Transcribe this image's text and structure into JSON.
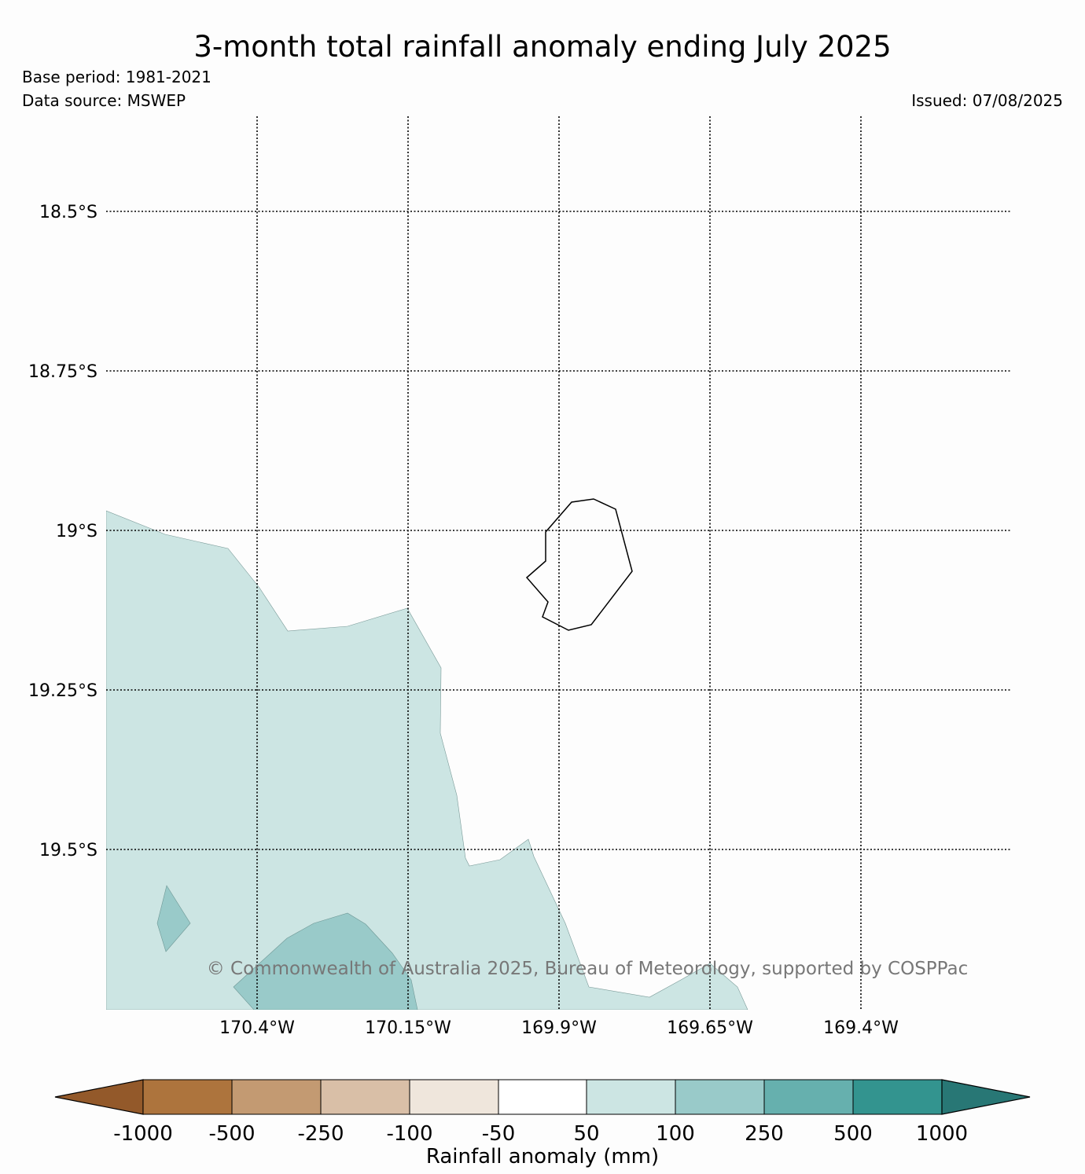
{
  "header": {
    "title": "3-month total rainfall anomaly ending July 2025",
    "base_period": "Base period: 1981-2021",
    "data_source": "Data source: MSWEP",
    "issued": "Issued: 07/08/2025"
  },
  "map": {
    "lat_labels": [
      "18.5°S",
      "18.75°S",
      "19°S",
      "19.25°S",
      "19.5°S"
    ],
    "lon_labels": [
      "170.4°W",
      "170.15°W",
      "169.9°W",
      "169.65°W",
      "169.4°W"
    ],
    "copyright": "© Commonwealth of Australia 2025, Bureau of Meteorology, supported by COSPPac",
    "anomaly_colors": {
      "50_to_100": "#cce5e3",
      "100_to_250": "#99cac9"
    }
  },
  "colorbar": {
    "label": "Rainfall anomaly (mm)",
    "ticks": [
      "-1000",
      "-500",
      "-250",
      "-100",
      "-50",
      "50",
      "100",
      "250",
      "500",
      "1000"
    ],
    "colors": [
      "#93592a",
      "#ad743d",
      "#c39a72",
      "#d9bfa7",
      "#efe6dc",
      "#ffffff",
      "#cce5e3",
      "#99cac9",
      "#66b0ae",
      "#33948f",
      "#287775"
    ]
  }
}
